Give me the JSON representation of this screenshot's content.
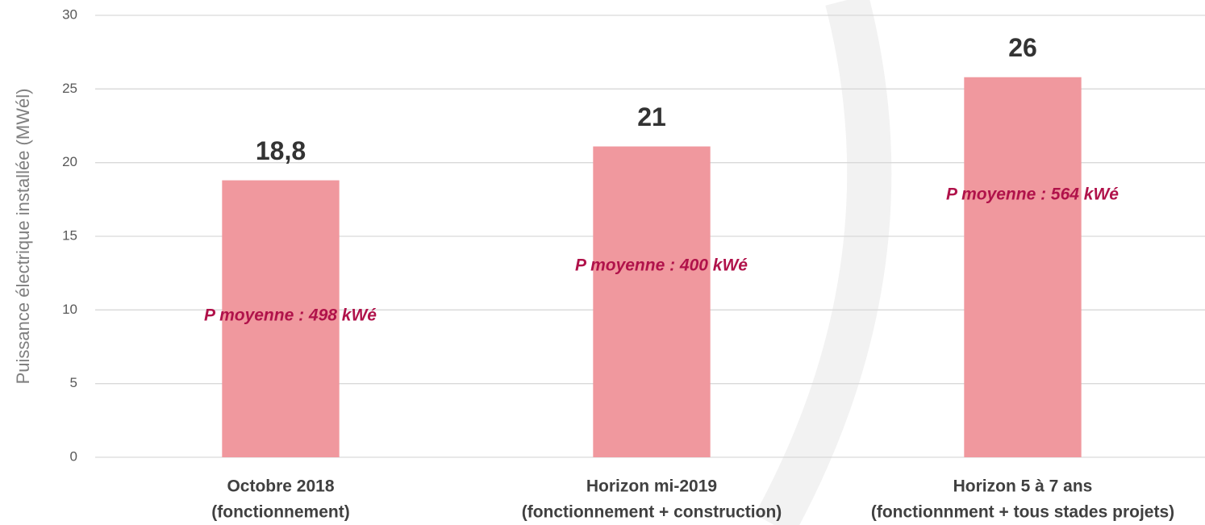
{
  "chart_data": {
    "type": "bar",
    "y_label": "Puissance électrique installée (MWél)",
    "categories": [
      [
        "Octobre 2018",
        "(fonctionnement)"
      ],
      [
        "Horizon mi-2019",
        "(fonctionnement + construction)"
      ],
      [
        "Horizon 5 à 7 ans",
        "(fonctionnment + tous stades projets)"
      ]
    ],
    "values": [
      18.8,
      21.1,
      25.8
    ],
    "value_labels": [
      "18,8",
      "21",
      "26"
    ],
    "annotations": [
      "P moyenne : 498 kWé",
      "P moyenne : 400 kWé",
      "P moyenne : 564 kWé"
    ],
    "color": "#f0989e",
    "ylim": [
      0,
      30
    ],
    "yticks": [
      0,
      5,
      10,
      15,
      20,
      25,
      30
    ],
    "grid": true
  }
}
